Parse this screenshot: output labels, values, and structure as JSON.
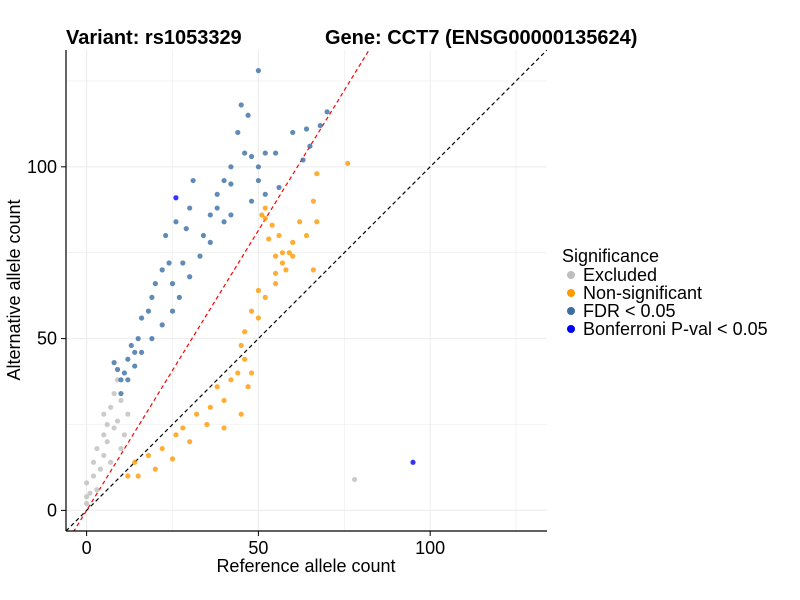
{
  "chart_data": {
    "type": "scatter",
    "title_left": "Variant: rs1053329",
    "title_right": "Gene: CCT7 (ENSG00000135624)",
    "xlabel": "Reference allele count",
    "ylabel": "Alternative allele count",
    "xlim": [
      -6,
      134
    ],
    "ylim": [
      -6,
      134
    ],
    "xticks": [
      0,
      50,
      100
    ],
    "yticks": [
      0,
      50,
      100
    ],
    "grid": true,
    "reference_lines": [
      {
        "name": "y = x",
        "slope": 1,
        "intercept": 0,
        "color": "#000000",
        "style": "dashed"
      },
      {
        "name": "fitted",
        "slope": 1.63,
        "intercept": 0,
        "color": "#ff0000",
        "style": "dashed"
      }
    ],
    "legend": {
      "title": "Significance",
      "position": "right",
      "entries": [
        {
          "label": "Excluded",
          "color": "#bebebe"
        },
        {
          "label": "Non-significant",
          "color": "#ff9900"
        },
        {
          "label": "FDR < 0.05",
          "color": "#3a6ea5"
        },
        {
          "label": "Bonferroni P-val < 0.05",
          "color": "#0000ff"
        }
      ]
    },
    "series": [
      {
        "name": "Excluded",
        "color": "#bebebe",
        "points": [
          [
            0,
            2
          ],
          [
            0,
            4
          ],
          [
            0,
            8
          ],
          [
            1,
            5
          ],
          [
            2,
            10
          ],
          [
            2,
            14
          ],
          [
            3,
            6
          ],
          [
            3,
            18
          ],
          [
            4,
            12
          ],
          [
            5,
            16
          ],
          [
            5,
            22
          ],
          [
            5,
            28
          ],
          [
            6,
            20
          ],
          [
            6,
            25
          ],
          [
            7,
            30
          ],
          [
            7,
            14
          ],
          [
            8,
            34
          ],
          [
            8,
            24
          ],
          [
            9,
            38
          ],
          [
            9,
            26
          ],
          [
            10,
            32
          ],
          [
            10,
            18
          ],
          [
            11,
            22
          ],
          [
            12,
            28
          ],
          [
            78,
            9
          ]
        ]
      },
      {
        "name": "Non-significant",
        "color": "#ff9900",
        "points": [
          [
            76,
            101
          ],
          [
            67,
            98
          ],
          [
            66,
            90
          ],
          [
            66,
            70
          ],
          [
            67,
            84
          ],
          [
            64,
            80
          ],
          [
            60,
            78
          ],
          [
            62,
            84
          ],
          [
            59,
            75
          ],
          [
            57,
            75
          ],
          [
            57,
            72
          ],
          [
            55,
            74
          ],
          [
            55,
            69
          ],
          [
            53,
            79
          ],
          [
            56,
            80
          ],
          [
            54,
            83
          ],
          [
            52,
            85
          ],
          [
            51,
            86
          ],
          [
            52,
            88
          ],
          [
            58,
            70
          ],
          [
            60,
            74
          ],
          [
            55,
            66
          ],
          [
            52,
            62
          ],
          [
            50,
            64
          ],
          [
            48,
            58
          ],
          [
            50,
            56
          ],
          [
            46,
            52
          ],
          [
            45,
            48
          ],
          [
            44,
            40
          ],
          [
            47,
            36
          ],
          [
            40,
            32
          ],
          [
            35,
            25
          ],
          [
            30,
            20
          ],
          [
            25,
            15
          ],
          [
            20,
            12
          ],
          [
            22,
            18
          ],
          [
            15,
            10
          ],
          [
            14,
            14
          ],
          [
            40,
            24
          ],
          [
            45,
            28
          ],
          [
            48,
            40
          ],
          [
            46,
            44
          ],
          [
            42,
            38
          ],
          [
            38,
            36
          ],
          [
            36,
            30
          ],
          [
            32,
            28
          ],
          [
            28,
            24
          ],
          [
            26,
            22
          ],
          [
            18,
            16
          ],
          [
            12,
            10
          ]
        ]
      },
      {
        "name": "FDR < 0.05",
        "color": "#3a6ea5",
        "points": [
          [
            50,
            128
          ],
          [
            68,
            112
          ],
          [
            70,
            116
          ],
          [
            65,
            106
          ],
          [
            63,
            102
          ],
          [
            64,
            111
          ],
          [
            60,
            110
          ],
          [
            45,
            118
          ],
          [
            47,
            115
          ],
          [
            44,
            110
          ],
          [
            42,
            100
          ],
          [
            42,
            95
          ],
          [
            46,
            104
          ],
          [
            48,
            103
          ],
          [
            52,
            104
          ],
          [
            50,
            100
          ],
          [
            55,
            104
          ],
          [
            50,
            96
          ],
          [
            56,
            94
          ],
          [
            52,
            92
          ],
          [
            48,
            90
          ],
          [
            40,
            96
          ],
          [
            38,
            92
          ],
          [
            38,
            88
          ],
          [
            36,
            86
          ],
          [
            34,
            80
          ],
          [
            30,
            88
          ],
          [
            31,
            96
          ],
          [
            29,
            82
          ],
          [
            28,
            72
          ],
          [
            26,
            84
          ],
          [
            23,
            80
          ],
          [
            24,
            72
          ],
          [
            25,
            66
          ],
          [
            22,
            70
          ],
          [
            20,
            66
          ],
          [
            19,
            62
          ],
          [
            18,
            58
          ],
          [
            16,
            56
          ],
          [
            15,
            50
          ],
          [
            14,
            46
          ],
          [
            13,
            48
          ],
          [
            12,
            44
          ],
          [
            11,
            40
          ],
          [
            10,
            38
          ],
          [
            9,
            41
          ],
          [
            8,
            43
          ],
          [
            40,
            84
          ],
          [
            42,
            86
          ],
          [
            36,
            78
          ],
          [
            33,
            74
          ],
          [
            30,
            68
          ],
          [
            27,
            62
          ],
          [
            25,
            58
          ],
          [
            22,
            54
          ],
          [
            19,
            50
          ],
          [
            16,
            46
          ],
          [
            14,
            42
          ],
          [
            12,
            38
          ],
          [
            10,
            34
          ]
        ]
      },
      {
        "name": "Bonferroni P-val < 0.05",
        "color": "#0000ff",
        "points": [
          [
            26,
            91
          ],
          [
            95,
            14
          ]
        ]
      }
    ]
  }
}
